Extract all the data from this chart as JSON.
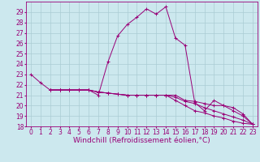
{
  "xlabel": "Windchill (Refroidissement éolien,°C)",
  "background_color": "#cce8ee",
  "grid_color": "#aaccd4",
  "line_color": "#990077",
  "xlim": [
    -0.5,
    23.5
  ],
  "ylim": [
    18,
    30
  ],
  "yticks": [
    18,
    19,
    20,
    21,
    22,
    23,
    24,
    25,
    26,
    27,
    28,
    29
  ],
  "xticks": [
    0,
    1,
    2,
    3,
    4,
    5,
    6,
    7,
    8,
    9,
    10,
    11,
    12,
    13,
    14,
    15,
    16,
    17,
    18,
    19,
    20,
    21,
    22,
    23
  ],
  "series": [
    {
      "x": [
        0,
        1,
        2,
        3,
        4,
        5,
        6,
        7,
        8,
        9,
        10,
        11,
        12,
        13,
        14,
        15,
        16,
        17,
        18,
        19,
        20,
        21,
        22,
        23
      ],
      "y": [
        23.0,
        22.2,
        21.5,
        21.5,
        21.5,
        21.5,
        21.5,
        21.0,
        24.2,
        26.7,
        27.8,
        28.5,
        29.3,
        28.8,
        29.5,
        26.5,
        25.8,
        20.3,
        19.5,
        20.5,
        20.0,
        19.5,
        19.0,
        18.2
      ]
    },
    {
      "x": [
        2,
        3,
        4,
        5,
        6,
        7,
        8,
        9,
        10,
        11,
        12,
        13,
        14,
        15,
        16,
        17,
        18,
        19,
        20,
        21,
        22,
        23
      ],
      "y": [
        21.5,
        21.5,
        21.5,
        21.5,
        21.5,
        21.3,
        21.2,
        21.1,
        21.0,
        21.0,
        21.0,
        21.0,
        21.0,
        21.0,
        20.5,
        20.4,
        20.2,
        20.0,
        20.0,
        19.8,
        19.2,
        18.2
      ]
    },
    {
      "x": [
        2,
        3,
        4,
        5,
        6,
        7,
        8,
        9,
        10,
        11,
        12,
        13,
        14,
        15,
        16,
        17,
        18,
        19,
        20,
        21,
        22,
        23
      ],
      "y": [
        21.5,
        21.5,
        21.5,
        21.5,
        21.5,
        21.3,
        21.2,
        21.1,
        21.0,
        21.0,
        21.0,
        21.0,
        21.0,
        20.8,
        20.4,
        20.2,
        19.8,
        19.5,
        19.2,
        18.9,
        18.6,
        18.2
      ]
    },
    {
      "x": [
        2,
        3,
        4,
        5,
        6,
        7,
        8,
        9,
        10,
        11,
        12,
        13,
        14,
        15,
        16,
        17,
        18,
        19,
        20,
        21,
        22,
        23
      ],
      "y": [
        21.5,
        21.5,
        21.5,
        21.5,
        21.5,
        21.3,
        21.2,
        21.1,
        21.0,
        21.0,
        21.0,
        21.0,
        21.0,
        20.5,
        20.0,
        19.5,
        19.3,
        19.0,
        18.8,
        18.5,
        18.3,
        18.2
      ]
    }
  ],
  "marker": "+",
  "markersize": 3,
  "linewidth": 0.7,
  "xlabel_fontsize": 6.5,
  "tick_fontsize": 5.5
}
